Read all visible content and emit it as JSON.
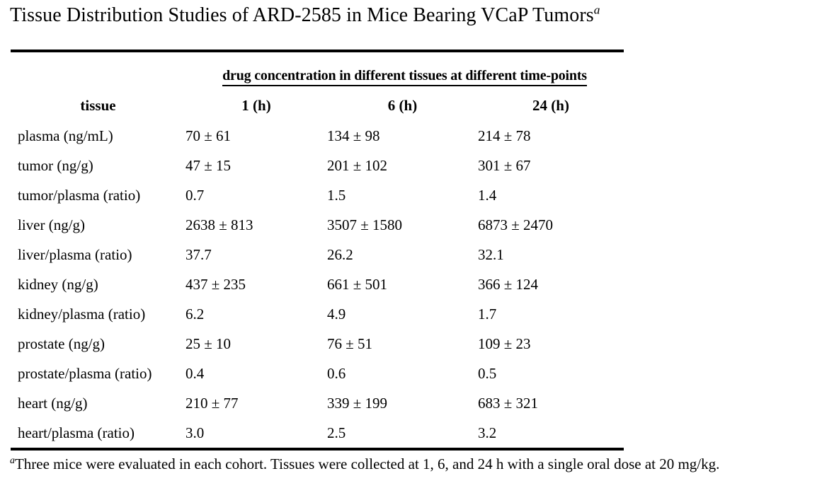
{
  "title": {
    "text": "Tissue Distribution Studies of ARD-2585 in Mice Bearing VCaP Tumors",
    "footnote_marker": "a"
  },
  "table": {
    "span_header": "drug concentration in different tissues at different time-points",
    "columns": [
      "tissue",
      "1 (h)",
      "6 (h)",
      "24 (h)"
    ],
    "rows": [
      [
        "plasma (ng/mL)",
        "70 ± 61",
        "134 ± 98",
        "214 ± 78"
      ],
      [
        "tumor (ng/g)",
        "47 ± 15",
        "201 ± 102",
        "301 ± 67"
      ],
      [
        "tumor/plasma (ratio)",
        "0.7",
        "1.5",
        "1.4"
      ],
      [
        "liver (ng/g)",
        "2638 ± 813",
        "3507 ± 1580",
        "6873 ± 2470"
      ],
      [
        "liver/plasma (ratio)",
        "37.7",
        "26.2",
        "32.1"
      ],
      [
        "kidney (ng/g)",
        "437 ± 235",
        "661 ± 501",
        "366 ± 124"
      ],
      [
        "kidney/plasma (ratio)",
        "6.2",
        "4.9",
        "1.7"
      ],
      [
        "prostate (ng/g)",
        "25 ± 10",
        "76 ± 51",
        "109 ± 23"
      ],
      [
        "prostate/plasma (ratio)",
        "0.4",
        "0.6",
        "0.5"
      ],
      [
        "heart (ng/g)",
        "210 ± 77",
        "339 ± 199",
        "683 ± 321"
      ],
      [
        "heart/plasma (ratio)",
        "3.0",
        "2.5",
        "3.2"
      ]
    ]
  },
  "footnote": {
    "marker": "a",
    "text": "Three mice were evaluated in each cohort. Tissues were collected at 1, 6, and 24 h with a single oral dose at 20 mg/kg."
  },
  "colors": {
    "text": "#000000",
    "background": "#ffffff",
    "rule": "#000000"
  }
}
